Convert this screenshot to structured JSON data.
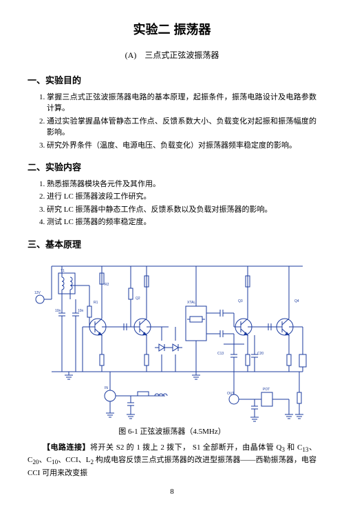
{
  "title": "实验二  振荡器",
  "subtitle_prefix": "(A)",
  "subtitle": "三点式正弦波振荡器",
  "sec1_head": "一、实验目的",
  "sec1_items": [
    "掌握三点式正弦波振荡器电路的基本原理，起振条件，振荡电路设计及电路参数计算。",
    "通过实验掌握晶体管静态工作点、反馈系数大小、负载变化对起振和振荡幅度的影响。",
    "研究外界条件（温度、电源电压、负载变化）对振荡器频率稳定度的影响。"
  ],
  "sec2_head": "二、实验内容",
  "sec2_items": [
    "熟悉振荡器模块各元件及其作用。",
    "进行 LC 振荡器波段工作研究。",
    "研究 LC 振荡器中静态工作点、反馈系数以及负载对振荡器的影响。",
    "测试 LC 振荡器的频率稳定度。"
  ],
  "sec3_head": "三、基本原理",
  "fig_caption": "图 6-1 正弦波振荡器（4.5MHz）",
  "para_label": "【电路连接】",
  "para_body_1": "将开关 S2 的 1 拨上 2 拨下， S1 全部断开，由晶体管 Q",
  "para_body_sub1": "3",
  "para_body_2": " 和 C",
  "para_body_sub2": "13",
  "para_body_3": "、C",
  "para_body_sub3": "20",
  "para_body_4": "、C",
  "para_body_sub4": "10",
  "para_body_5": "、CCI、L",
  "para_body_sub5": "2",
  "para_body_6": " 构成电容反馈三点式振荡器的改进型振荡器——西勒振荡器，电容 CCI 可用来改变振",
  "page_number": "8",
  "circuit_color": "#1a3a9e",
  "circuit_stroke": 1.0
}
